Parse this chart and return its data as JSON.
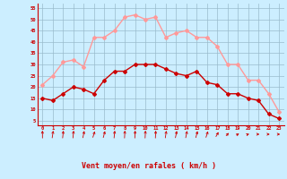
{
  "hours": [
    0,
    1,
    2,
    3,
    4,
    5,
    6,
    7,
    8,
    9,
    10,
    11,
    12,
    13,
    14,
    15,
    16,
    17,
    18,
    19,
    20,
    21,
    22,
    23
  ],
  "wind_avg": [
    15,
    14,
    17,
    20,
    19,
    17,
    23,
    27,
    27,
    30,
    30,
    30,
    28,
    26,
    25,
    27,
    22,
    21,
    17,
    17,
    15,
    14,
    8,
    6
  ],
  "wind_gust": [
    21,
    25,
    31,
    32,
    29,
    42,
    42,
    45,
    51,
    52,
    50,
    51,
    42,
    44,
    45,
    42,
    42,
    38,
    30,
    30,
    23,
    23,
    17,
    9
  ],
  "wind_dir_deg": [
    0,
    15,
    10,
    10,
    20,
    30,
    25,
    10,
    5,
    5,
    5,
    5,
    15,
    20,
    20,
    25,
    30,
    45,
    60,
    70,
    80,
    90,
    90,
    90
  ],
  "avg_color": "#cc0000",
  "gust_color": "#ff9999",
  "background_color": "#cceeff",
  "grid_color": "#99bbcc",
  "ylabel_ticks": [
    5,
    10,
    15,
    20,
    25,
    30,
    35,
    40,
    45,
    50,
    55
  ],
  "ymin": 3,
  "ymax": 57,
  "xlabel": "Vent moyen/en rafales ( km/h )",
  "xlabel_color": "#cc0000",
  "tick_color": "#cc0000",
  "marker_size": 2,
  "line_width": 1.0,
  "arrow_color": "#cc0000"
}
